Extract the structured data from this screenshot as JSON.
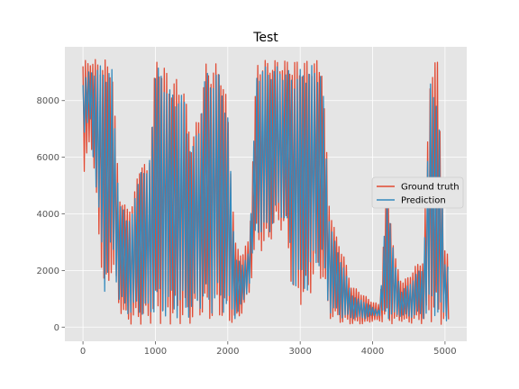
{
  "chart_data": {
    "type": "line",
    "title": "Test",
    "xlabel": "",
    "ylabel": "",
    "xlim": [
      -250,
      5300
    ],
    "ylim": [
      -500,
      9900
    ],
    "x_ticks": [
      0,
      1000,
      2000,
      3000,
      4000,
      5000
    ],
    "y_ticks": [
      0,
      2000,
      4000,
      6000,
      8000
    ],
    "grid": true,
    "legend_position": "center-right",
    "style": {
      "background": "#e5e5e5",
      "grid_color": "#ffffff"
    },
    "series": [
      {
        "name": "Ground truth",
        "color": "#e24a33",
        "envelope": {
          "x": [
            0,
            100,
            200,
            300,
            400,
            500,
            600,
            700,
            800,
            900,
            1000,
            1100,
            1200,
            1300,
            1400,
            1500,
            1600,
            1700,
            1800,
            1900,
            2000,
            2100,
            2200,
            2300,
            2400,
            2500,
            2600,
            2700,
            2800,
            2900,
            3000,
            3100,
            3200,
            3300,
            3400,
            3500,
            3600,
            3700,
            3800,
            3900,
            4000,
            4100,
            4200,
            4300,
            4400,
            4500,
            4600,
            4700,
            4800,
            4900,
            5000
          ],
          "hi": [
            9400,
            9450,
            9450,
            9450,
            9400,
            4800,
            4200,
            4600,
            6100,
            5500,
            9450,
            9450,
            8700,
            8800,
            8400,
            6600,
            7600,
            9300,
            9300,
            9300,
            7800,
            3000,
            2600,
            3200,
            9400,
            9450,
            9450,
            9450,
            9450,
            9450,
            9450,
            9450,
            9450,
            9450,
            4500,
            3200,
            2600,
            1500,
            1300,
            1100,
            900,
            800,
            5300,
            2600,
            1600,
            1800,
            2200,
            2400,
            9450,
            9450,
            2600
          ],
          "lo": [
            4700,
            6800,
            3800,
            600,
            2000,
            600,
            100,
            100,
            100,
            100,
            200,
            100,
            100,
            100,
            100,
            100,
            400,
            200,
            200,
            300,
            100,
            100,
            500,
            1200,
            3000,
            2500,
            3100,
            3500,
            3300,
            1000,
            800,
            800,
            1700,
            1700,
            300,
            200,
            100,
            100,
            100,
            100,
            200,
            200,
            100,
            100,
            200,
            100,
            200,
            100,
            200,
            100,
            100
          ]
        }
      },
      {
        "name": "Prediction",
        "color": "#348abd",
        "envelope": {
          "x": [
            0,
            100,
            200,
            300,
            400,
            500,
            600,
            700,
            800,
            900,
            1000,
            1100,
            1200,
            1300,
            1400,
            1500,
            1600,
            1700,
            1800,
            1900,
            2000,
            2100,
            2200,
            2300,
            2400,
            2500,
            2600,
            2700,
            2800,
            2900,
            3000,
            3100,
            3200,
            3300,
            3400,
            3500,
            3600,
            3700,
            3800,
            3900,
            4000,
            4100,
            4200,
            4300,
            4400,
            4500,
            4600,
            4700,
            4800,
            4900,
            5000
          ],
          "hi": [
            8700,
            9100,
            9200,
            9300,
            9100,
            4500,
            3900,
            4200,
            5900,
            5300,
            9200,
            9100,
            8400,
            8400,
            8100,
            6200,
            7300,
            9100,
            9000,
            9000,
            7500,
            2600,
            2200,
            2800,
            9100,
            9200,
            9200,
            9200,
            9100,
            9000,
            9100,
            9300,
            9200,
            9200,
            4000,
            2800,
            2200,
            1200,
            1000,
            900,
            700,
            600,
            5000,
            2300,
            1300,
            1500,
            1900,
            2100,
            8600,
            8400,
            2300
          ],
          "lo": [
            6700,
            7200,
            4200,
            1200,
            2500,
            900,
            400,
            500,
            400,
            300,
            500,
            300,
            400,
            300,
            400,
            300,
            700,
            500,
            500,
            600,
            400,
            300,
            700,
            1500,
            3400,
            3000,
            3400,
            3900,
            3700,
            1400,
            1200,
            1200,
            2100,
            2100,
            500,
            400,
            300,
            300,
            300,
            300,
            400,
            400,
            300,
            300,
            400,
            300,
            400,
            300,
            400,
            300,
            200
          ]
        }
      }
    ]
  }
}
